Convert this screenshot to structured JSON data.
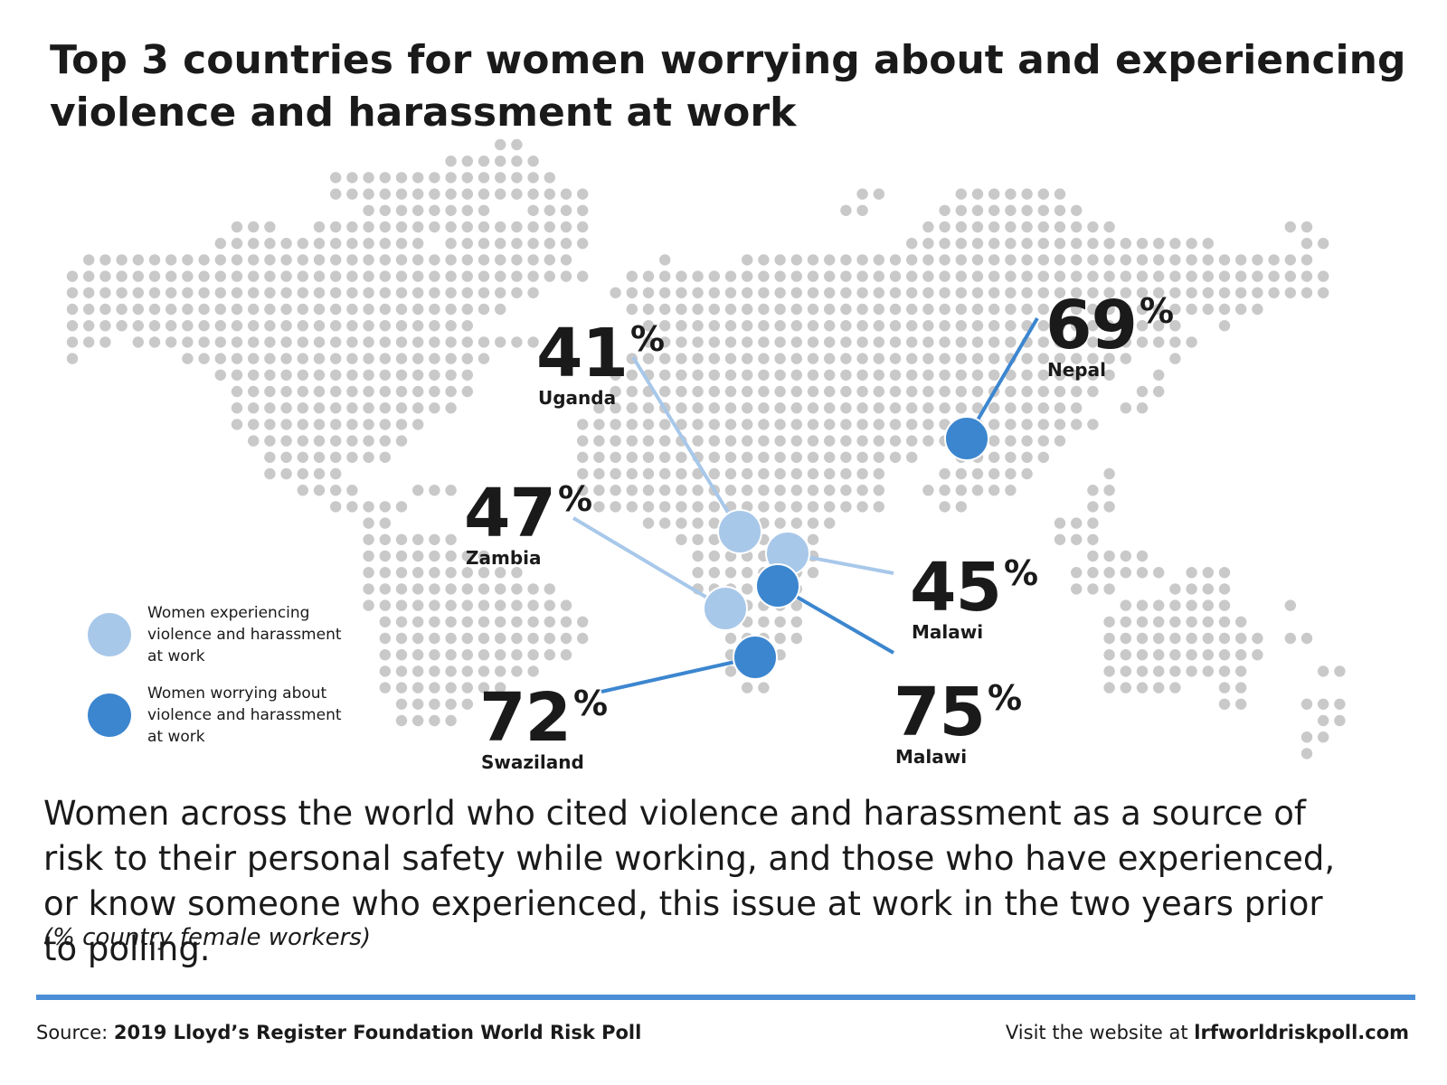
{
  "title": "Top 3 countries for women worrying about and experiencing violence and harassment at work",
  "colors": {
    "experiencing": "#a8c8ea",
    "worrying": "#3c86cf",
    "map_dots": "#c9c9c9",
    "text": "#1a1a1a",
    "rule": "#4a8fd6"
  },
  "legend": [
    {
      "label": "Women experiencing violence and harassment at work",
      "color": "#a8c8ea"
    },
    {
      "label": "Women worrying about violence and harassment at work",
      "color": "#3c86cf"
    }
  ],
  "callouts": [
    {
      "country": "Uganda",
      "value": "41",
      "unit": "%",
      "category": "experiencing"
    },
    {
      "country": "Zambia",
      "value": "47",
      "unit": "%",
      "category": "experiencing"
    },
    {
      "country": "Malawi",
      "value": "45",
      "unit": "%",
      "category": "experiencing"
    },
    {
      "country": "Nepal",
      "value": "69",
      "unit": "%",
      "category": "worrying"
    },
    {
      "country": "Malawi",
      "value": "75",
      "unit": "%",
      "category": "worrying"
    },
    {
      "country": "Swaziland",
      "value": "72",
      "unit": "%",
      "category": "worrying"
    }
  ],
  "subtitle": "Women across the world who cited violence and harassment as a source of risk to their personal safety while working, and those who have experienced, or know someone who experienced, this issue at work in the two years prior to polling.",
  "note": "(% country female workers)",
  "source_label": "Source: ",
  "source_name": "2019 Lloyd’s Register Foundation World Risk Poll",
  "visit_label": "Visit the website at ",
  "website": "lrfworldriskpoll.com"
}
